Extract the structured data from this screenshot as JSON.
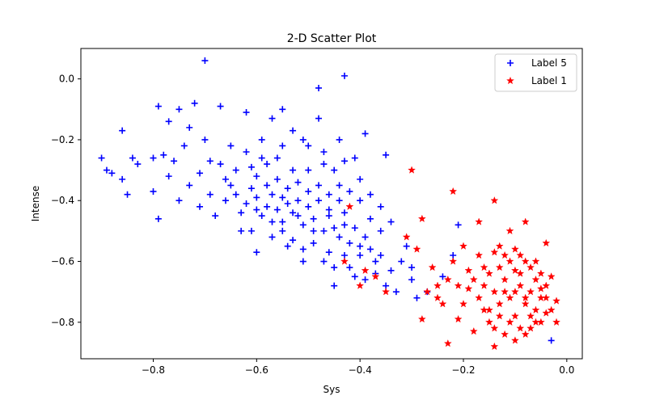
{
  "chart_data": {
    "type": "scatter",
    "title": "2-D Scatter Plot",
    "xlabel": "Sys",
    "ylabel": "Intense",
    "xlim": [
      -0.94,
      0.03
    ],
    "ylim": [
      -0.92,
      0.1
    ],
    "xticks": [
      -0.8,
      -0.6,
      -0.4,
      -0.2,
      0.0
    ],
    "xtick_labels": [
      "−0.8",
      "−0.6",
      "−0.4",
      "−0.2",
      "0.0"
    ],
    "yticks": [
      -0.8,
      -0.6,
      -0.4,
      -0.2,
      0.0
    ],
    "ytick_labels": [
      "−0.8",
      "−0.6",
      "−0.4",
      "−0.2",
      "0.0"
    ],
    "grid": false,
    "legend": "top-right",
    "series": [
      {
        "name": "Label 5",
        "color": "#0000ff",
        "marker": "plus",
        "points": [
          [
            -0.9,
            -0.26
          ],
          [
            -0.89,
            -0.3
          ],
          [
            -0.88,
            -0.31
          ],
          [
            -0.86,
            -0.17
          ],
          [
            -0.86,
            -0.33
          ],
          [
            -0.85,
            -0.38
          ],
          [
            -0.84,
            -0.26
          ],
          [
            -0.83,
            -0.28
          ],
          [
            -0.8,
            -0.26
          ],
          [
            -0.8,
            -0.37
          ],
          [
            -0.79,
            -0.46
          ],
          [
            -0.79,
            -0.09
          ],
          [
            -0.78,
            -0.25
          ],
          [
            -0.77,
            -0.32
          ],
          [
            -0.77,
            -0.14
          ],
          [
            -0.76,
            -0.27
          ],
          [
            -0.75,
            -0.4
          ],
          [
            -0.75,
            -0.1
          ],
          [
            -0.74,
            -0.22
          ],
          [
            -0.73,
            -0.16
          ],
          [
            -0.72,
            -0.08
          ],
          [
            -0.71,
            -0.42
          ],
          [
            -0.7,
            -0.2
          ],
          [
            -0.7,
            0.06
          ],
          [
            -0.69,
            -0.27
          ],
          [
            -0.68,
            -0.45
          ],
          [
            -0.67,
            -0.09
          ],
          [
            -0.66,
            -0.33
          ],
          [
            -0.65,
            -0.22
          ],
          [
            -0.64,
            -0.38
          ],
          [
            -0.63,
            -0.5
          ],
          [
            -0.62,
            -0.11
          ],
          [
            -0.61,
            -0.29
          ],
          [
            -0.6,
            -0.43
          ],
          [
            -0.6,
            -0.57
          ],
          [
            -0.59,
            -0.2
          ],
          [
            -0.58,
            -0.35
          ],
          [
            -0.57,
            -0.47
          ],
          [
            -0.57,
            -0.13
          ],
          [
            -0.56,
            -0.26
          ],
          [
            -0.55,
            -0.1
          ],
          [
            -0.55,
            -0.39
          ],
          [
            -0.54,
            -0.55
          ],
          [
            -0.53,
            -0.17
          ],
          [
            -0.53,
            -0.3
          ],
          [
            -0.52,
            -0.45
          ],
          [
            -0.51,
            -0.6
          ],
          [
            -0.5,
            -0.22
          ],
          [
            -0.5,
            -0.37
          ],
          [
            -0.49,
            -0.5
          ],
          [
            -0.48,
            -0.13
          ],
          [
            -0.48,
            -0.03
          ],
          [
            -0.47,
            -0.28
          ],
          [
            -0.46,
            -0.43
          ],
          [
            -0.46,
            -0.57
          ],
          [
            -0.45,
            -0.68
          ],
          [
            -0.44,
            -0.2
          ],
          [
            -0.44,
            -0.35
          ],
          [
            -0.43,
            0.01
          ],
          [
            -0.43,
            -0.48
          ],
          [
            -0.42,
            -0.62
          ],
          [
            -0.41,
            -0.26
          ],
          [
            -0.4,
            -0.4
          ],
          [
            -0.4,
            -0.55
          ],
          [
            -0.39,
            -0.18
          ],
          [
            -0.38,
            -0.46
          ],
          [
            -0.37,
            -0.6
          ],
          [
            -0.36,
            -0.5
          ],
          [
            -0.35,
            -0.68
          ],
          [
            -0.35,
            -0.25
          ],
          [
            -0.34,
            -0.63
          ],
          [
            -0.33,
            -0.7
          ],
          [
            -0.31,
            -0.55
          ],
          [
            -0.3,
            -0.66
          ],
          [
            -0.29,
            -0.72
          ],
          [
            -0.27,
            -0.7
          ],
          [
            -0.24,
            -0.65
          ],
          [
            -0.22,
            -0.58
          ],
          [
            -0.21,
            -0.48
          ],
          [
            -0.03,
            -0.86
          ],
          [
            -0.66,
            -0.4
          ],
          [
            -0.64,
            -0.3
          ],
          [
            -0.62,
            -0.41
          ],
          [
            -0.61,
            -0.36
          ],
          [
            -0.6,
            -0.39
          ],
          [
            -0.59,
            -0.45
          ],
          [
            -0.58,
            -0.42
          ],
          [
            -0.57,
            -0.38
          ],
          [
            -0.56,
            -0.43
          ],
          [
            -0.55,
            -0.47
          ],
          [
            -0.54,
            -0.41
          ],
          [
            -0.53,
            -0.44
          ],
          [
            -0.52,
            -0.4
          ],
          [
            -0.51,
            -0.48
          ],
          [
            -0.5,
            -0.42
          ],
          [
            -0.49,
            -0.46
          ],
          [
            -0.48,
            -0.4
          ],
          [
            -0.47,
            -0.5
          ],
          [
            -0.46,
            -0.45
          ],
          [
            -0.45,
            -0.49
          ],
          [
            -0.44,
            -0.52
          ],
          [
            -0.43,
            -0.44
          ],
          [
            -0.42,
            -0.54
          ],
          [
            -0.41,
            -0.49
          ],
          [
            -0.4,
            -0.58
          ],
          [
            -0.39,
            -0.52
          ],
          [
            -0.38,
            -0.56
          ],
          [
            -0.37,
            -0.64
          ],
          [
            -0.36,
            -0.58
          ],
          [
            -0.6,
            -0.32
          ],
          [
            -0.58,
            -0.28
          ],
          [
            -0.56,
            -0.33
          ],
          [
            -0.54,
            -0.36
          ],
          [
            -0.52,
            -0.34
          ],
          [
            -0.5,
            -0.3
          ],
          [
            -0.48,
            -0.35
          ],
          [
            -0.46,
            -0.38
          ],
          [
            -0.44,
            -0.4
          ],
          [
            -0.42,
            -0.37
          ],
          [
            -0.63,
            -0.44
          ],
          [
            -0.61,
            -0.5
          ],
          [
            -0.57,
            -0.52
          ],
          [
            -0.55,
            -0.5
          ],
          [
            -0.53,
            -0.53
          ],
          [
            -0.51,
            -0.56
          ],
          [
            -0.49,
            -0.54
          ],
          [
            -0.47,
            -0.6
          ],
          [
            -0.45,
            -0.62
          ],
          [
            -0.43,
            -0.58
          ],
          [
            -0.41,
            -0.65
          ],
          [
            -0.39,
            -0.66
          ],
          [
            -0.65,
            -0.35
          ],
          [
            -0.67,
            -0.28
          ],
          [
            -0.69,
            -0.38
          ],
          [
            -0.71,
            -0.31
          ],
          [
            -0.73,
            -0.35
          ],
          [
            -0.62,
            -0.24
          ],
          [
            -0.59,
            -0.26
          ],
          [
            -0.55,
            -0.22
          ],
          [
            -0.51,
            -0.2
          ],
          [
            -0.47,
            -0.24
          ],
          [
            -0.45,
            -0.3
          ],
          [
            -0.43,
            -0.27
          ],
          [
            -0.4,
            -0.33
          ],
          [
            -0.38,
            -0.38
          ],
          [
            -0.36,
            -0.42
          ],
          [
            -0.34,
            -0.47
          ],
          [
            -0.32,
            -0.6
          ],
          [
            -0.3,
            -0.62
          ]
        ]
      },
      {
        "name": "Label 1",
        "color": "#ff0000",
        "marker": "star",
        "points": [
          [
            -0.3,
            -0.3
          ],
          [
            -0.22,
            -0.37
          ],
          [
            -0.28,
            -0.46
          ],
          [
            -0.42,
            -0.42
          ],
          [
            -0.43,
            -0.6
          ],
          [
            -0.39,
            -0.63
          ],
          [
            -0.37,
            -0.65
          ],
          [
            -0.4,
            -0.68
          ],
          [
            -0.35,
            -0.7
          ],
          [
            -0.31,
            -0.52
          ],
          [
            -0.29,
            -0.56
          ],
          [
            -0.28,
            -0.79
          ],
          [
            -0.26,
            -0.62
          ],
          [
            -0.25,
            -0.68
          ],
          [
            -0.24,
            -0.74
          ],
          [
            -0.23,
            -0.87
          ],
          [
            -0.22,
            -0.6
          ],
          [
            -0.21,
            -0.79
          ],
          [
            -0.2,
            -0.55
          ],
          [
            -0.19,
            -0.69
          ],
          [
            -0.18,
            -0.83
          ],
          [
            -0.17,
            -0.47
          ],
          [
            -0.16,
            -0.62
          ],
          [
            -0.15,
            -0.76
          ],
          [
            -0.14,
            -0.88
          ],
          [
            -0.14,
            -0.4
          ],
          [
            -0.13,
            -0.55
          ],
          [
            -0.12,
            -0.7
          ],
          [
            -0.12,
            -0.84
          ],
          [
            -0.11,
            -0.5
          ],
          [
            -0.1,
            -0.63
          ],
          [
            -0.1,
            -0.78
          ],
          [
            -0.09,
            -0.58
          ],
          [
            -0.08,
            -0.47
          ],
          [
            -0.08,
            -0.72
          ],
          [
            -0.07,
            -0.82
          ],
          [
            -0.06,
            -0.6
          ],
          [
            -0.05,
            -0.69
          ],
          [
            -0.04,
            -0.54
          ],
          [
            -0.04,
            -0.77
          ],
          [
            -0.03,
            -0.65
          ],
          [
            -0.02,
            -0.73
          ],
          [
            -0.02,
            -0.8
          ],
          [
            -0.18,
            -0.66
          ],
          [
            -0.17,
            -0.72
          ],
          [
            -0.16,
            -0.68
          ],
          [
            -0.15,
            -0.64
          ],
          [
            -0.14,
            -0.7
          ],
          [
            -0.13,
            -0.74
          ],
          [
            -0.12,
            -0.66
          ],
          [
            -0.11,
            -0.72
          ],
          [
            -0.1,
            -0.7
          ],
          [
            -0.09,
            -0.68
          ],
          [
            -0.08,
            -0.74
          ],
          [
            -0.07,
            -0.7
          ],
          [
            -0.06,
            -0.76
          ],
          [
            -0.05,
            -0.72
          ],
          [
            -0.04,
            -0.68
          ],
          [
            -0.13,
            -0.62
          ],
          [
            -0.11,
            -0.6
          ],
          [
            -0.09,
            -0.64
          ],
          [
            -0.07,
            -0.62
          ],
          [
            -0.05,
            -0.64
          ],
          [
            -0.15,
            -0.8
          ],
          [
            -0.13,
            -0.78
          ],
          [
            -0.11,
            -0.8
          ],
          [
            -0.09,
            -0.82
          ],
          [
            -0.07,
            -0.78
          ],
          [
            -0.05,
            -0.8
          ],
          [
            -0.2,
            -0.74
          ],
          [
            -0.19,
            -0.63
          ],
          [
            -0.21,
            -0.68
          ],
          [
            -0.23,
            -0.66
          ],
          [
            -0.25,
            -0.72
          ],
          [
            -0.27,
            -0.7
          ],
          [
            -0.17,
            -0.58
          ],
          [
            -0.14,
            -0.57
          ],
          [
            -0.12,
            -0.58
          ],
          [
            -0.1,
            -0.56
          ],
          [
            -0.08,
            -0.6
          ],
          [
            -0.06,
            -0.66
          ],
          [
            -0.04,
            -0.72
          ],
          [
            -0.16,
            -0.76
          ],
          [
            -0.14,
            -0.82
          ],
          [
            -0.1,
            -0.86
          ],
          [
            -0.08,
            -0.84
          ],
          [
            -0.06,
            -0.8
          ],
          [
            -0.03,
            -0.76
          ]
        ]
      }
    ]
  }
}
